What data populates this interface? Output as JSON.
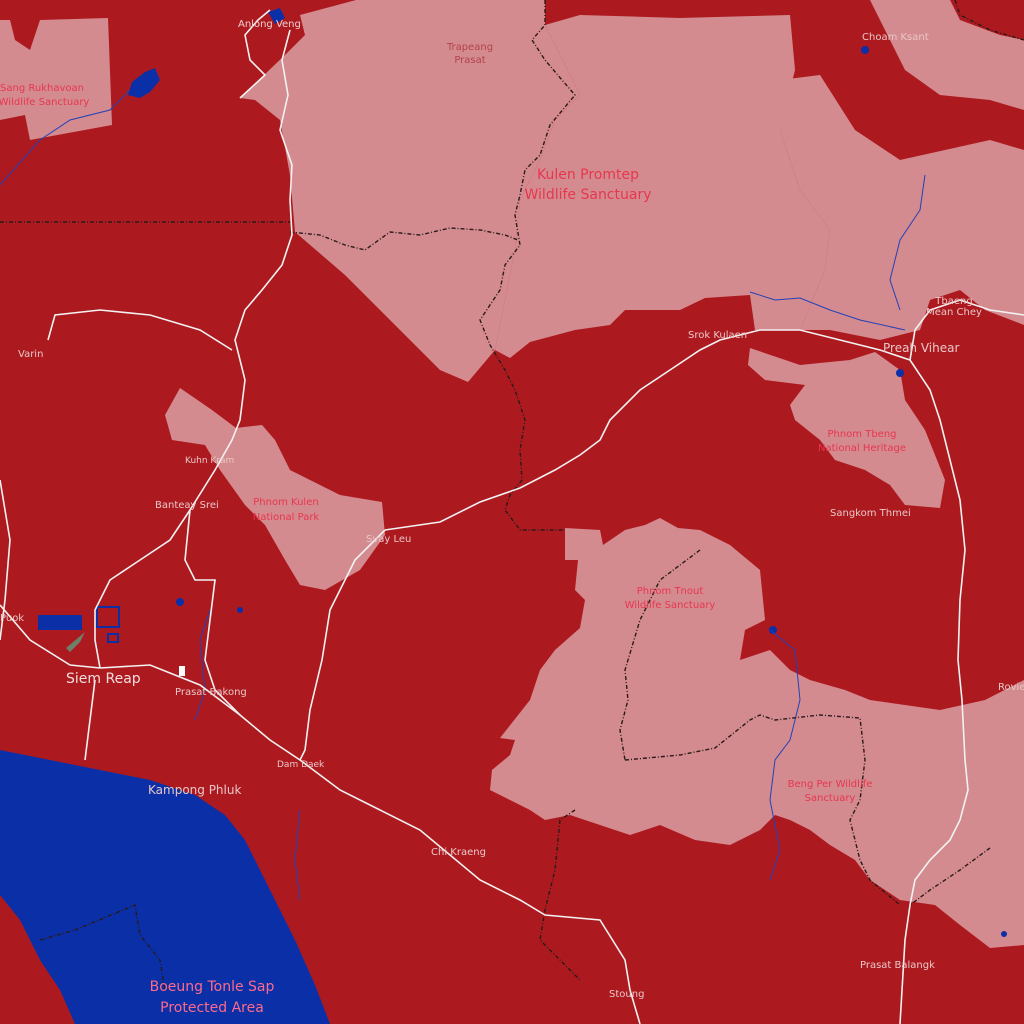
{
  "colors": {
    "land": "#ac1a20",
    "protected_area": "#d48b8f",
    "water": "#0a2fa6",
    "road": "#f2f2f2",
    "border": "#2a1a1a"
  },
  "places": {
    "anlong_veng": "Anlong Veng",
    "choam_ksant": "Choam Ksant",
    "trapeang_prasat_1": "Trapeang",
    "trapeang_prasat_2": "Prasat",
    "sang_rukhavoan_1": "Sang Rukhavoan",
    "sang_rukhavoan_2": "Wildlife Sanctuary",
    "kulen_promtep_1": "Kulen Promtep",
    "kulen_promtep_2": "Wildlife Sanctuary",
    "varin": "Varin",
    "srok_kulaen": "Srok Kulaen",
    "tbaeng_meanchey_1": "Tbaeng",
    "tbaeng_meanchey_2": "Mean Chey",
    "preah_vihear": "Preah Vihear",
    "phnom_tbeng_1": "Phnom Tbeng",
    "phnom_tbeng_2": "National Heritage",
    "kuhn_kram": "Kuhn Kram",
    "banteay_srei": "Banteay Srei",
    "phnom_kulen_1": "Phnom Kulen",
    "phnom_kulen_2": "National Park",
    "svay_leu": "Svay Leu",
    "sangkom_thmei": "Sangkom Thmei",
    "phnom_tnout_1": "Phnom Tnout",
    "phnom_tnout_2": "Wildlife Sanctuary",
    "puok": "Puok",
    "siem_reap": "Siem Reap",
    "prasat_bakong": "Prasat Bakong",
    "rovieng": "Rovie",
    "dam_daek": "Dam Daek",
    "beng_per_1": "Beng Per Wildlife",
    "beng_per_2": "Sanctuary",
    "kampong_phluk": "Kampong Phluk",
    "chi_kraeng": "Chi Kraeng",
    "prasat_balangk": "Prasat Balangk",
    "stoung": "Stoung",
    "boeung_tonle_sap_1": "Boeung Tonle Sap",
    "boeung_tonle_sap_2": "Protected Area"
  }
}
